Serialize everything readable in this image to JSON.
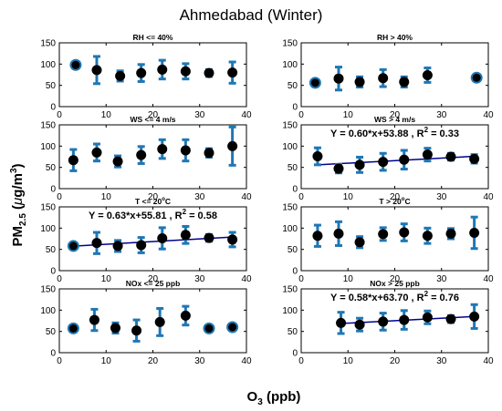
{
  "figure_title": "Ahmedabad (Winter)",
  "ylabel": {
    "main": "PM",
    "sub": "2.5",
    "unit_open": " (",
    "mu": "μ",
    "unit_mid": "g/m",
    "sup": "3",
    "unit_close": ")"
  },
  "xlabel": {
    "main": "O",
    "sub": "3",
    "rest": " (ppb)"
  },
  "colors": {
    "errorbar": "#1f77b4",
    "marker": "#000000",
    "fit_line": "#00008b",
    "axes": "#000000"
  },
  "chart_data": [
    {
      "type": "scatter",
      "title": "RH <= 40%",
      "title_sup": "",
      "title_tail": "",
      "xlim": [
        0,
        40
      ],
      "xticks": [
        0,
        10,
        20,
        30,
        40
      ],
      "ylim": [
        0,
        150
      ],
      "yticks": [
        0,
        50,
        100,
        150
      ],
      "x": [
        3.5,
        8,
        13,
        17.5,
        22,
        27,
        32,
        37
      ],
      "y": [
        98,
        86,
        72,
        79,
        87,
        83,
        79,
        80
      ],
      "err": [
        0,
        32,
        12,
        20,
        22,
        18,
        8,
        25
      ],
      "fit": null
    },
    {
      "type": "scatter",
      "title": "RH > 40%",
      "title_sup": "",
      "title_tail": "",
      "xlim": [
        0,
        40
      ],
      "xticks": [
        0,
        10,
        20,
        30,
        40
      ],
      "ylim": [
        0,
        150
      ],
      "yticks": [
        0,
        50,
        100,
        150
      ],
      "x": [
        3,
        8,
        12.5,
        17.5,
        22,
        27,
        37.5
      ],
      "y": [
        56,
        66,
        58,
        67,
        58,
        74,
        68
      ],
      "err": [
        0,
        27,
        12,
        20,
        12,
        17,
        0
      ],
      "fit": null
    },
    {
      "type": "scatter",
      "title": "WS <= 4 m/s",
      "title_sup": "",
      "title_tail": "",
      "xlim": [
        0,
        40
      ],
      "xticks": [
        0,
        10,
        20,
        30,
        40
      ],
      "ylim": [
        0,
        150
      ],
      "yticks": [
        0,
        50,
        100,
        150
      ],
      "x": [
        3,
        8,
        12.5,
        17.5,
        22,
        27,
        32,
        37
      ],
      "y": [
        67,
        85,
        64,
        79,
        93,
        90,
        84,
        100
      ],
      "err": [
        25,
        20,
        13,
        20,
        22,
        25,
        10,
        45
      ],
      "fit": null
    },
    {
      "type": "scatter",
      "title": "WS > 4 m/s",
      "title_sup": "",
      "title_tail": "",
      "xlim": [
        0,
        40
      ],
      "xticks": [
        0,
        10,
        20,
        30,
        40
      ],
      "ylim": [
        0,
        150
      ],
      "yticks": [
        0,
        50,
        100,
        150
      ],
      "x": [
        3.5,
        8,
        12.5,
        17.5,
        22,
        27,
        32,
        37
      ],
      "y": [
        76,
        47,
        56,
        63,
        68,
        80,
        75,
        70
      ],
      "err": [
        20,
        10,
        18,
        20,
        22,
        15,
        8,
        10
      ],
      "fit": {
        "equation": "Y = 0.60*x+53.88 , R",
        "r2_sup": "2",
        "r2_tail": " = 0.33",
        "slope": 0.6,
        "intercept": 53.88,
        "x_range": [
          3.5,
          37
        ]
      }
    },
    {
      "type": "scatter",
      "title": "T <= 20",
      "title_sup": "o",
      "title_tail": "C",
      "xlim": [
        0,
        40
      ],
      "xticks": [
        0,
        10,
        20,
        30,
        40
      ],
      "ylim": [
        0,
        150
      ],
      "yticks": [
        0,
        50,
        100,
        150
      ],
      "x": [
        3,
        8,
        12.5,
        17.5,
        22,
        27,
        32,
        37
      ],
      "y": [
        58,
        65,
        58,
        60,
        76,
        84,
        77,
        73
      ],
      "err": [
        0,
        25,
        13,
        18,
        25,
        20,
        8,
        17
      ],
      "fit": {
        "equation": "Y = 0.63*x+55.81 , R",
        "r2_sup": "2",
        "r2_tail": " = 0.58",
        "slope": 0.63,
        "intercept": 55.81,
        "x_range": [
          3,
          37
        ]
      }
    },
    {
      "type": "scatter",
      "title": "T > 20",
      "title_sup": "o",
      "title_tail": "C",
      "xlim": [
        0,
        40
      ],
      "xticks": [
        0,
        10,
        20,
        30,
        40
      ],
      "ylim": [
        0,
        150
      ],
      "yticks": [
        0,
        50,
        100,
        150
      ],
      "x": [
        3.5,
        8,
        12.5,
        17.5,
        22,
        27,
        32,
        37
      ],
      "y": [
        82,
        87,
        67,
        86,
        90,
        82,
        87,
        89
      ],
      "err": [
        25,
        28,
        13,
        15,
        20,
        18,
        12,
        37
      ],
      "fit": null
    },
    {
      "type": "scatter",
      "title": "NOx <= 25 ppb",
      "title_sup": "",
      "title_tail": "",
      "xlim": [
        0,
        40
      ],
      "xticks": [
        0,
        10,
        20,
        30,
        40
      ],
      "ylim": [
        0,
        150
      ],
      "yticks": [
        0,
        50,
        100,
        150
      ],
      "x": [
        3,
        7.5,
        12,
        16.5,
        21.5,
        27,
        32,
        37
      ],
      "y": [
        57,
        77,
        58,
        52,
        72,
        87,
        57,
        60
      ],
      "err": [
        0,
        25,
        12,
        25,
        32,
        22,
        0,
        0
      ],
      "fit": null
    },
    {
      "type": "scatter",
      "title": "NOx > 25 ppb",
      "title_sup": "",
      "title_tail": "",
      "xlim": [
        0,
        40
      ],
      "xticks": [
        0,
        10,
        20,
        30,
        40
      ],
      "ylim": [
        0,
        150
      ],
      "yticks": [
        0,
        50,
        100,
        150
      ],
      "x": [
        8.5,
        12.5,
        17.5,
        22,
        27,
        32,
        37
      ],
      "y": [
        70,
        66,
        73,
        77,
        83,
        79,
        85
      ],
      "err": [
        25,
        15,
        20,
        22,
        15,
        8,
        28
      ],
      "fit": {
        "equation": "Y = 0.58*x+63.70 , R",
        "r2_sup": "2",
        "r2_tail": " = 0.76",
        "slope": 0.58,
        "intercept": 63.7,
        "x_range": [
          8.5,
          37
        ]
      }
    }
  ]
}
